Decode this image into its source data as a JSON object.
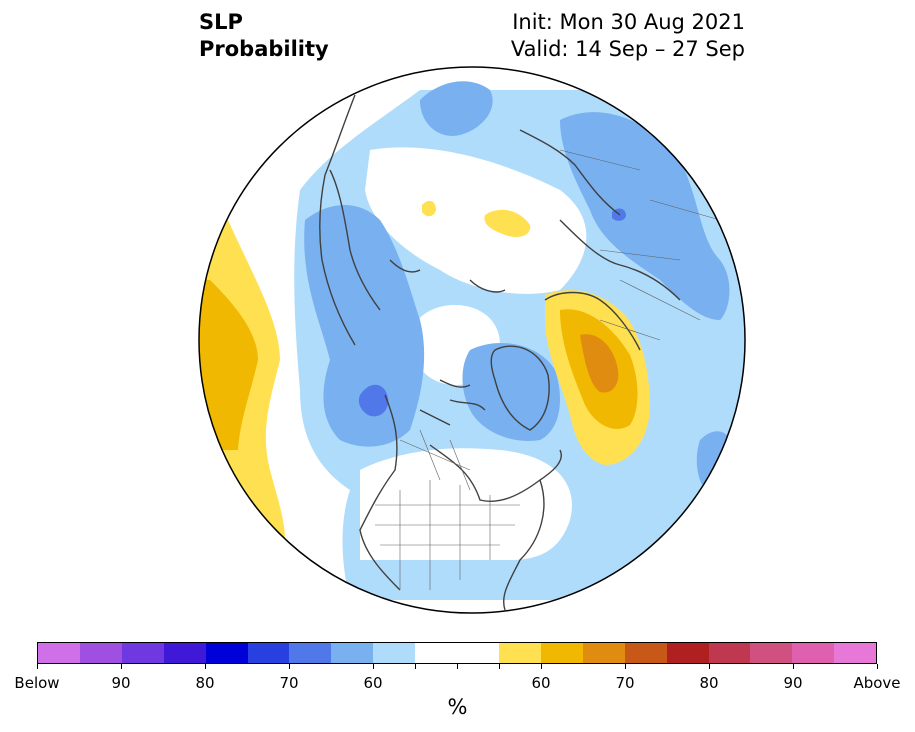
{
  "title": {
    "left_line1": "SLP",
    "left_line2": "Probability",
    "right_line1": "Init: Mon 30 Aug 2021",
    "right_line2": "Valid: 14 Sep – 27 Sep"
  },
  "colorbar": {
    "colors": [
      "#d070e8",
      "#a050e0",
      "#7038e0",
      "#4018d8",
      "#0000d8",
      "#2840e0",
      "#5078e8",
      "#78b0f0",
      "#b0dcfc",
      "#ffffff",
      "#ffffff",
      "#ffe050",
      "#f0b800",
      "#e08c10",
      "#c85818",
      "#b02020",
      "#c03850",
      "#d05080",
      "#e060b0",
      "#e878d8"
    ],
    "labels": [
      "Below",
      "90",
      "80",
      "70",
      "60",
      "60",
      "70",
      "80",
      "90",
      "Above"
    ],
    "unit": "%"
  },
  "map_colors": {
    "land_outline": "#404040",
    "below_55": "#b0dcfc",
    "below_60": "#78b0f0",
    "below_70": "#5078e8",
    "above_55": "#ffe050",
    "above_60": "#f0b800",
    "above_65": "#e08c10"
  }
}
